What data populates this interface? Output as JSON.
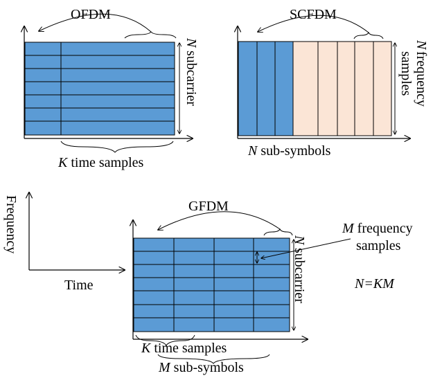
{
  "colors": {
    "blue": "#5b9bd5",
    "peach": "#fbe5d6",
    "line": "#000000"
  },
  "ofdm": {
    "title": "OFDM",
    "side_n": "N",
    "side_label": "subcarrier",
    "bottom_k": "K",
    "bottom_label": "time samples"
  },
  "scfdm": {
    "title": "SCFDM",
    "side_n": "N",
    "side_label": "frequency samples",
    "side_label_line1": "frequency",
    "side_label_line2": "samples",
    "bottom_n": "N",
    "bottom_label": "sub-symbols"
  },
  "axes": {
    "y_label": "Frequency",
    "x_label": "Time"
  },
  "gfdm": {
    "title": "GFDM",
    "side_n": "N",
    "side_label": "subcarrier",
    "m_label_m": "M",
    "m_label_rest": "frequency",
    "m_label_line2": "samples",
    "equation": "N=KM",
    "bottom_k": "K",
    "bottom_k_label": "time samples",
    "bottom_m": "M",
    "bottom_m_label": "sub-symbols"
  }
}
